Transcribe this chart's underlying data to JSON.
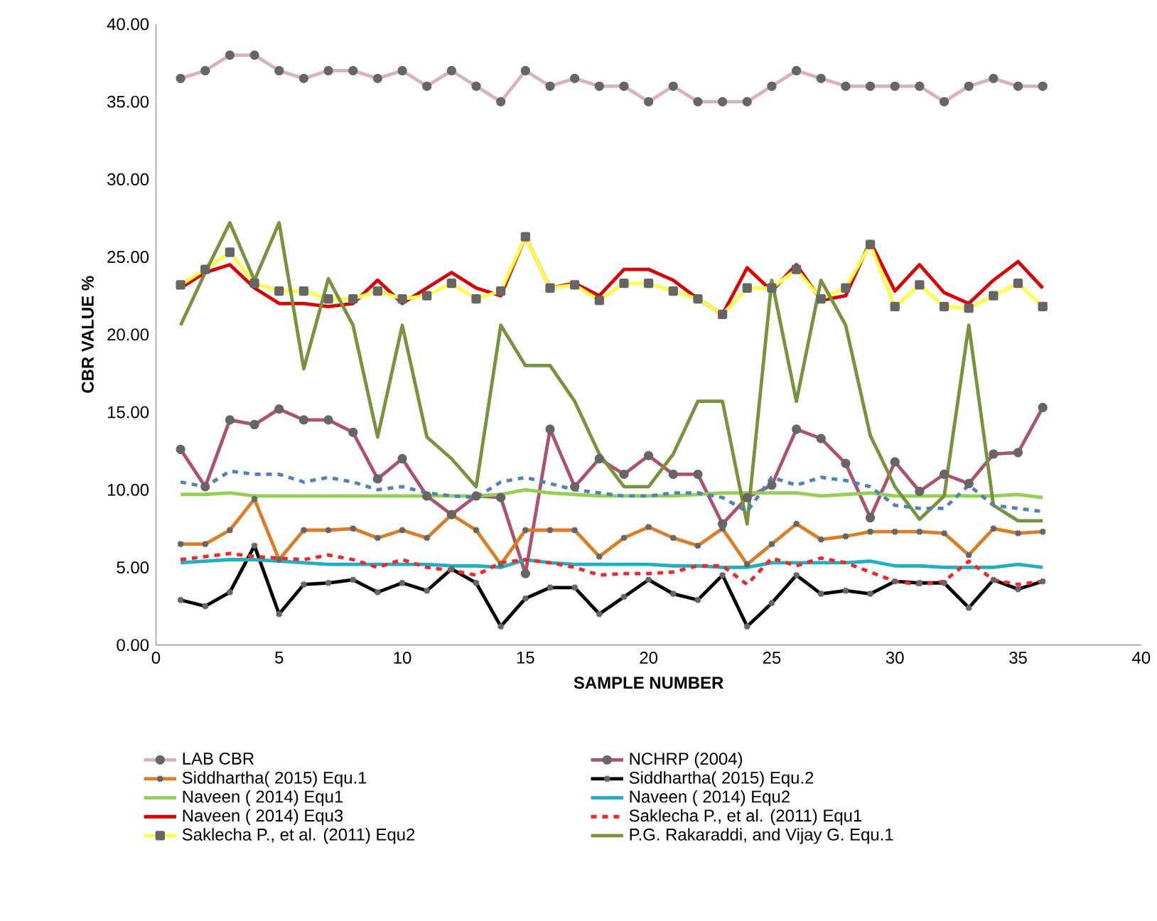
{
  "chart_data": {
    "type": "line",
    "xlabel": "SAMPLE NUMBER",
    "ylabel": "CBR VALUE %",
    "x": [
      1,
      2,
      3,
      4,
      5,
      6,
      7,
      8,
      9,
      10,
      11,
      12,
      13,
      14,
      15,
      16,
      17,
      18,
      19,
      20,
      21,
      22,
      23,
      24,
      25,
      26,
      27,
      28,
      29,
      30,
      31,
      32,
      33,
      34,
      35,
      36
    ],
    "xlim": [
      0,
      40
    ],
    "xticks": [
      0,
      5,
      10,
      15,
      20,
      25,
      30,
      35,
      40
    ],
    "ylim": [
      0,
      40
    ],
    "yticks": [
      {
        "value": 0,
        "label": "0.00"
      },
      {
        "value": 5,
        "label": "5.00"
      },
      {
        "value": 10,
        "label": "10.00"
      },
      {
        "value": 15,
        "label": "15.00"
      },
      {
        "value": 20,
        "label": "20.00"
      },
      {
        "value": 25,
        "label": "25.00"
      },
      {
        "value": 30,
        "label": "30.00"
      },
      {
        "value": 35,
        "label": "35.00"
      },
      {
        "value": 40,
        "label": "40.00"
      }
    ],
    "grid": false,
    "legend": "bottom",
    "series": [
      {
        "name": "LAB CBR",
        "color": "#d9b3b8",
        "marker": "circle",
        "values": [
          36.5,
          37,
          38,
          38,
          37,
          36.5,
          37,
          37,
          36.5,
          37,
          36,
          37,
          36,
          35,
          37,
          36,
          36.5,
          36,
          36,
          35,
          36,
          35,
          35,
          35,
          36,
          37,
          36.5,
          36,
          36,
          36,
          36,
          35,
          36,
          36.5,
          36,
          36
        ]
      },
      {
        "name": "NCHRP (2004)",
        "color": "#b05070",
        "marker": "circle",
        "values": [
          12.6,
          10.2,
          14.5,
          14.2,
          15.2,
          14.5,
          14.5,
          13.7,
          10.7,
          12.0,
          9.6,
          8.4,
          9.6,
          9.5,
          4.6,
          13.9,
          10.2,
          12.0,
          11.0,
          12.2,
          11.0,
          11.0,
          7.8,
          9.5,
          10.3,
          13.9,
          13.3,
          11.7,
          8.2,
          11.8,
          9.9,
          11.0,
          10.4,
          12.3,
          12.4,
          15.3
        ]
      },
      {
        "name": "Siddhartha( 2015) Equ.1",
        "color": "#e07b20",
        "marker": "cross",
        "values": [
          6.5,
          6.5,
          7.4,
          9.4,
          5.5,
          7.4,
          7.4,
          7.5,
          6.9,
          7.4,
          6.9,
          8.4,
          7.4,
          5.2,
          7.4,
          7.4,
          7.4,
          5.7,
          6.9,
          7.6,
          6.9,
          6.4,
          7.5,
          5.2,
          6.5,
          7.8,
          6.8,
          7.0,
          7.3,
          7.3,
          7.3,
          7.2,
          5.8,
          7.5,
          7.2,
          7.3
        ]
      },
      {
        "name": "Siddhartha( 2015) Equ.2",
        "color": "#000000",
        "marker": "cross",
        "values": [
          2.9,
          2.5,
          3.4,
          6.4,
          2.0,
          3.9,
          4.0,
          4.2,
          3.4,
          4.0,
          3.5,
          4.9,
          4.0,
          1.2,
          3.0,
          3.7,
          3.7,
          2.0,
          3.1,
          4.2,
          3.3,
          2.9,
          4.5,
          1.2,
          2.7,
          4.5,
          3.3,
          3.5,
          3.3,
          4.1,
          4.0,
          4.0,
          2.4,
          4.2,
          3.6,
          4.1
        ]
      },
      {
        "name": "Naveen ( 2014)  Equ1",
        "color": "#92d050",
        "marker": "none",
        "values": [
          9.7,
          9.7,
          9.8,
          9.6,
          9.6,
          9.6,
          9.6,
          9.6,
          9.6,
          9.6,
          9.6,
          9.6,
          9.6,
          9.7,
          10.0,
          9.8,
          9.7,
          9.6,
          9.6,
          9.6,
          9.6,
          9.7,
          9.8,
          9.8,
          9.8,
          9.8,
          9.6,
          9.7,
          9.8,
          9.6,
          9.6,
          9.6,
          9.6,
          9.6,
          9.7,
          9.5
        ]
      },
      {
        "name": "Naveen ( 2014)  Equ2",
        "color": "#1ab0c8",
        "marker": "none",
        "values": [
          5.3,
          5.4,
          5.5,
          5.5,
          5.4,
          5.3,
          5.2,
          5.2,
          5.2,
          5.2,
          5.2,
          5.1,
          5.1,
          5.0,
          5.5,
          5.3,
          5.2,
          5.2,
          5.2,
          5.2,
          5.1,
          5.1,
          5.0,
          5.0,
          5.3,
          5.3,
          5.3,
          5.3,
          5.4,
          5.1,
          5.1,
          5.0,
          5.0,
          5.0,
          5.2,
          5.0
        ]
      },
      {
        "name": "Naveen ( 2014)  Equ3",
        "color": "#e00000",
        "marker": "none",
        "values": [
          23,
          24,
          24.5,
          23,
          22,
          22,
          21.8,
          22,
          23.5,
          22,
          23,
          24,
          23,
          22.5,
          26.3,
          23,
          23.3,
          22.5,
          24.2,
          24.2,
          23.5,
          22.3,
          21.3,
          24.3,
          22.8,
          24.5,
          22.2,
          22.5,
          26,
          22.8,
          24.5,
          22.7,
          22,
          23.5,
          24.7,
          23
        ]
      },
      {
        "name": "Saklecha P., et al. (2011) Equ1",
        "color": "#ff2020",
        "marker": "none",
        "line_style": "dashed",
        "values": [
          5.5,
          5.7,
          5.9,
          5.7,
          5.6,
          5.5,
          5.8,
          5.5,
          5.0,
          5.5,
          5.0,
          4.8,
          4.5,
          5.3,
          5.5,
          5.3,
          5.0,
          4.5,
          4.6,
          4.6,
          4.7,
          5.1,
          5.1,
          3.9,
          5.6,
          5.1,
          5.6,
          5.3,
          4.7,
          4.1,
          3.9,
          4.1,
          5.4,
          4.2,
          3.9,
          4.1
        ]
      },
      {
        "name": "Saklecha P., et al. (2011) Equ2",
        "color": "#ffff40",
        "marker": "square",
        "values": [
          23.2,
          24.2,
          25.3,
          23.3,
          22.8,
          22.8,
          22.3,
          22.3,
          22.8,
          22.3,
          22.5,
          23.3,
          22.3,
          22.8,
          26.3,
          23,
          23.2,
          22.2,
          23.3,
          23.3,
          22.8,
          22.3,
          21.3,
          23,
          23,
          24.2,
          22.3,
          23,
          25.8,
          21.8,
          23.2,
          21.8,
          21.7,
          22.5,
          23.3,
          21.8
        ]
      },
      {
        "name": "P.G. Rakaraddi,  and Vijay G. Equ.1",
        "color": "#77933c",
        "marker": "none",
        "values": [
          20.6,
          24,
          27.2,
          23.5,
          27.2,
          17.8,
          23.6,
          20.6,
          13.4,
          20.6,
          13.4,
          12.0,
          10.2,
          20.6,
          18.0,
          18.0,
          15.7,
          12.3,
          10.2,
          10.2,
          12.3,
          15.7,
          15.7,
          7.8,
          23.5,
          15.7,
          23.5,
          20.6,
          13.5,
          10.2,
          8.1,
          9.6,
          20.6,
          9.0,
          8.0,
          8.0
        ]
      },
      {
        "color": "#4f81bd",
        "marker": "none",
        "line_style": "dashed",
        "values": [
          10.5,
          10.2,
          11.2,
          11,
          11,
          10.5,
          10.8,
          10.5,
          10,
          10.2,
          9.8,
          9.6,
          9.5,
          10.5,
          10.8,
          10.4,
          10,
          9.8,
          9.6,
          9.6,
          9.8,
          9.8,
          9.5,
          8.6,
          10.8,
          10.3,
          10.8,
          10.6,
          10.2,
          9,
          8.8,
          8.8,
          10.3,
          9,
          8.8,
          8.6
        ]
      }
    ]
  }
}
